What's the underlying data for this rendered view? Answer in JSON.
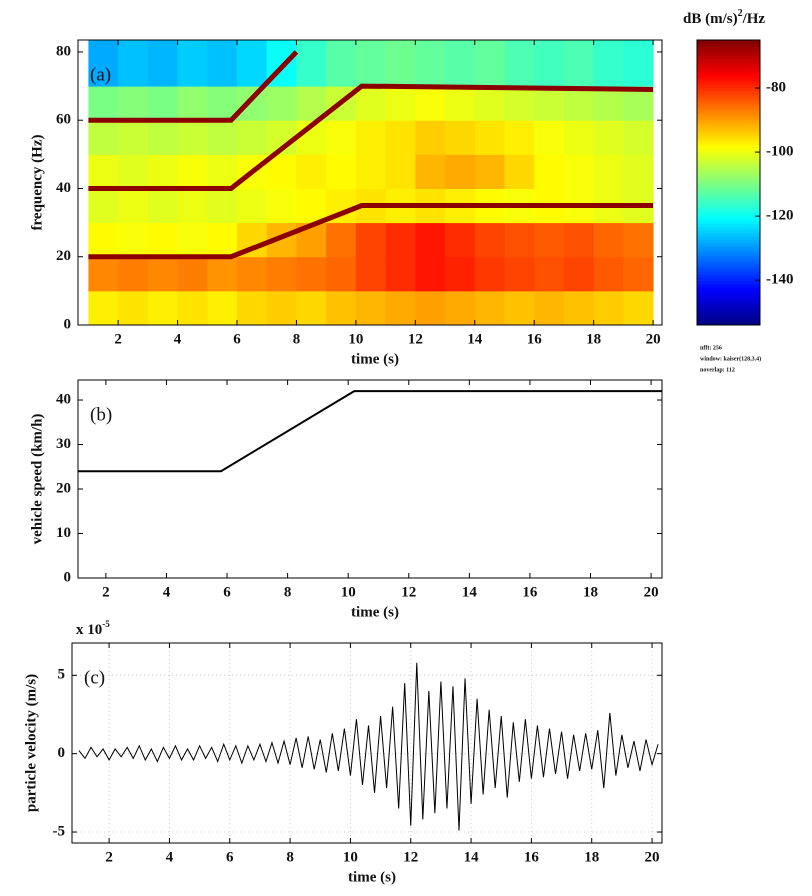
{
  "chart_data": [
    {
      "type": "heatmap",
      "annotation": "(a)",
      "xlabel": "time (s)",
      "ylabel": "frequency (Hz)",
      "xlim": [
        0.65,
        20.3
      ],
      "ylim": [
        0,
        83.5
      ],
      "xticks": [
        2,
        4,
        6,
        8,
        10,
        12,
        14,
        16,
        18,
        20
      ],
      "yticks": [
        0,
        20,
        40,
        60,
        80
      ],
      "colormap": "jet",
      "clim": [
        -154,
        -65
      ],
      "cticks": [
        -80,
        -100,
        -120,
        -140
      ],
      "colorbar_label": "dB (m/s)",
      "colorbar_label_exp": "2",
      "colorbar_label_tail": "/Hz",
      "notes": [
        "nfft: 256",
        "window: kaiser(128,3.4)",
        "noverlap: 112"
      ],
      "xbins": [
        1,
        2,
        3,
        4,
        5,
        6,
        7,
        8,
        9,
        10,
        11,
        12,
        13,
        14,
        15,
        16,
        17,
        18,
        19,
        20
      ],
      "ybins": [
        0,
        10,
        20,
        30,
        40,
        50,
        60,
        70,
        83.5
      ],
      "z": [
        [
          -97,
          -96,
          -97,
          -96,
          -97,
          -95,
          -94,
          -95,
          -93,
          -92,
          -91,
          -90,
          -91,
          -92,
          -93,
          -92,
          -93,
          -94,
          -95
        ],
        [
          -88,
          -87,
          -88,
          -87,
          -89,
          -88,
          -87,
          -86,
          -85,
          -82,
          -80,
          -78,
          -79,
          -81,
          -82,
          -83,
          -82,
          -84,
          -85
        ],
        [
          -98,
          -99,
          -98,
          -99,
          -98,
          -95,
          -92,
          -90,
          -86,
          -82,
          -80,
          -78,
          -80,
          -82,
          -83,
          -84,
          -83,
          -85,
          -86
        ],
        [
          -101,
          -100,
          -101,
          -100,
          -101,
          -100,
          -99,
          -98,
          -97,
          -96,
          -97,
          -96,
          -97,
          -98,
          -99,
          -98,
          -99,
          -100,
          -101
        ],
        [
          -100,
          -101,
          -100,
          -99,
          -100,
          -99,
          -98,
          -97,
          -98,
          -97,
          -96,
          -92,
          -91,
          -92,
          -95,
          -98,
          -99,
          -100,
          -101
        ],
        [
          -104,
          -103,
          -104,
          -103,
          -104,
          -103,
          -102,
          -100,
          -99,
          -97,
          -96,
          -94,
          -95,
          -96,
          -97,
          -99,
          -100,
          -101,
          -102
        ],
        [
          -110,
          -109,
          -110,
          -108,
          -109,
          -108,
          -107,
          -105,
          -103,
          -101,
          -100,
          -99,
          -100,
          -101,
          -102,
          -103,
          -104,
          -105,
          -106
        ],
        [
          -128,
          -126,
          -127,
          -125,
          -126,
          -124,
          -120,
          -116,
          -113,
          -112,
          -111,
          -112,
          -113,
          -112,
          -114,
          -115,
          -114,
          -116,
          -117
        ]
      ],
      "series": [
        {
          "color": "#8b0000",
          "x": [
            1,
            5.8,
            10.2,
            20
          ],
          "values": [
            20,
            20,
            35,
            35
          ]
        },
        {
          "color": "#8b0000",
          "x": [
            1,
            5.8,
            10.2,
            20
          ],
          "values": [
            40,
            40,
            70,
            69
          ]
        },
        {
          "color": "#8b0000",
          "x": [
            1,
            5.8,
            8
          ],
          "values": [
            60,
            60,
            80
          ]
        }
      ]
    },
    {
      "type": "line",
      "annotation": "(b)",
      "xlabel": "time (s)",
      "ylabel": "vehicle speed (km/h)",
      "xlim": [
        1.08,
        20.36
      ],
      "ylim": [
        0,
        44.5
      ],
      "xticks": [
        2,
        4,
        6,
        8,
        10,
        12,
        14,
        16,
        18,
        20
      ],
      "yticks": [
        0,
        10,
        20,
        30,
        40
      ],
      "x": [
        1.08,
        5.8,
        10.2,
        20.36
      ],
      "series": [
        {
          "color": "#000000",
          "values": [
            24,
            24,
            42,
            42
          ]
        }
      ]
    },
    {
      "type": "line",
      "annotation": "(c)",
      "xlabel": "time (s)",
      "ylabel": "particle velocity (m/s)",
      "y_multiplier": "x 10",
      "y_multiplier_exp": "-5",
      "grid": true,
      "xlim": [
        0.77,
        20.33
      ],
      "ylim": [
        -5.7,
        7.06
      ],
      "xticks": [
        2,
        4,
        6,
        8,
        10,
        12,
        14,
        16,
        18,
        20
      ],
      "yticks": [
        -5,
        0,
        5
      ],
      "x": [
        1.0,
        1.2,
        1.4,
        1.6,
        1.8,
        2.0,
        2.2,
        2.4,
        2.6,
        2.8,
        3.0,
        3.2,
        3.4,
        3.6,
        3.8,
        4.0,
        4.2,
        4.4,
        4.6,
        4.8,
        5.0,
        5.2,
        5.4,
        5.6,
        5.8,
        6.0,
        6.2,
        6.4,
        6.6,
        6.8,
        7.0,
        7.2,
        7.4,
        7.6,
        7.8,
        8.0,
        8.2,
        8.4,
        8.6,
        8.8,
        9.0,
        9.2,
        9.4,
        9.6,
        9.8,
        10.0,
        10.2,
        10.4,
        10.6,
        10.8,
        11.0,
        11.2,
        11.4,
        11.6,
        11.8,
        12.0,
        12.2,
        12.4,
        12.6,
        12.8,
        13.0,
        13.2,
        13.4,
        13.6,
        13.8,
        14.0,
        14.2,
        14.4,
        14.6,
        14.8,
        15.0,
        15.2,
        15.4,
        15.6,
        15.8,
        16.0,
        16.2,
        16.4,
        16.6,
        16.8,
        17.0,
        17.2,
        17.4,
        17.6,
        17.8,
        18.0,
        18.2,
        18.4,
        18.6,
        18.8,
        19.0,
        19.2,
        19.4,
        19.6,
        19.8,
        20.0,
        20.2
      ],
      "series": [
        {
          "color": "#000000",
          "values": [
            0.2,
            -0.3,
            0.4,
            -0.2,
            0.3,
            -0.4,
            0.3,
            -0.2,
            0.4,
            -0.3,
            0.5,
            -0.4,
            0.3,
            -0.5,
            0.4,
            -0.3,
            0.5,
            -0.4,
            0.3,
            -0.4,
            0.5,
            -0.3,
            0.4,
            -0.5,
            0.6,
            -0.4,
            0.5,
            -0.6,
            0.5,
            -0.4,
            0.6,
            -0.5,
            0.7,
            -0.6,
            0.8,
            -0.7,
            1.0,
            -0.9,
            1.1,
            -1.0,
            0.9,
            -1.2,
            1.3,
            -1.1,
            1.6,
            -1.4,
            2.2,
            -2.0,
            1.8,
            -2.5,
            2.4,
            -2.2,
            3.0,
            -3.5,
            4.5,
            -4.6,
            5.8,
            -4.2,
            4.0,
            -3.8,
            4.6,
            -3.5,
            4.3,
            -4.9,
            4.8,
            -3.2,
            3.5,
            -2.6,
            2.8,
            -2.2,
            2.4,
            -2.8,
            2.0,
            -1.8,
            2.2,
            -1.6,
            1.8,
            -1.5,
            1.6,
            -1.3,
            1.4,
            -1.6,
            1.2,
            -1.1,
            1.3,
            -1.0,
            1.5,
            -2.2,
            2.6,
            -1.4,
            1.2,
            -0.9,
            0.8,
            -1.1,
            0.9,
            -0.7,
            0.6
          ]
        }
      ]
    }
  ]
}
